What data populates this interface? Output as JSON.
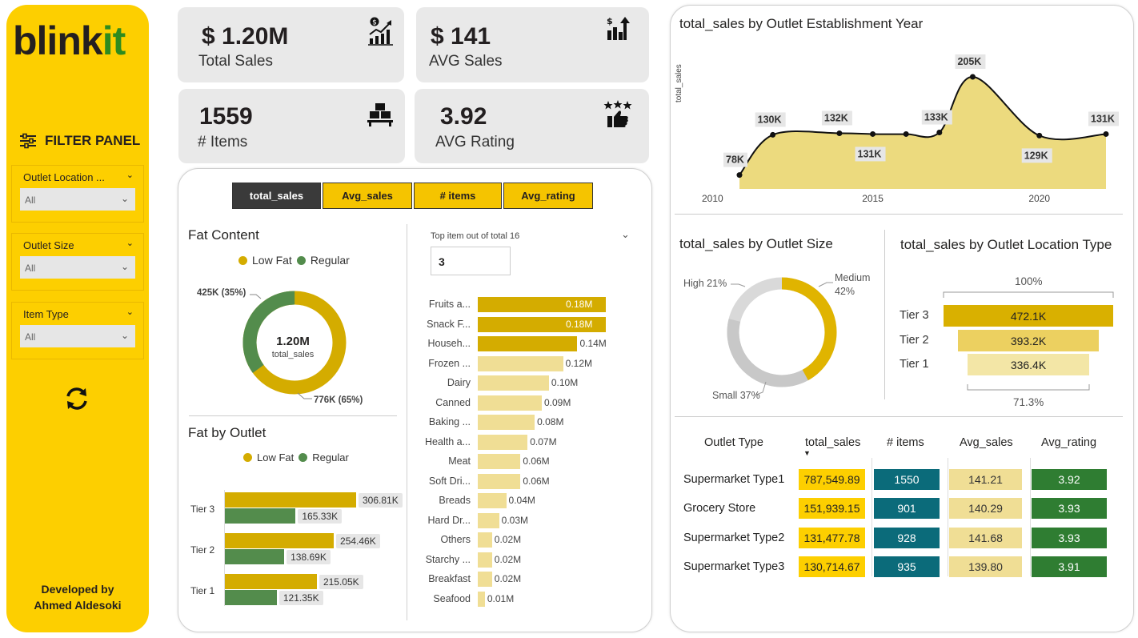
{
  "logo": {
    "part1": "blink",
    "part2": "it"
  },
  "filter_panel": {
    "title": "FILTER PANEL",
    "filters": [
      {
        "label": "Outlet Location ...",
        "value": "All"
      },
      {
        "label": "Outlet Size",
        "value": "All"
      },
      {
        "label": "Item Type",
        "value": "All"
      }
    ]
  },
  "developer": {
    "line1": "Developed by",
    "line2": "Ahmed Aldesoki"
  },
  "kpis": [
    {
      "value": "$ 1.20M",
      "label": "Total Sales",
      "icon": "sales-chart-icon"
    },
    {
      "value": "$ 141",
      "label": "AVG Sales",
      "icon": "bar-growth-icon"
    },
    {
      "value": "1559",
      "label": "# Items",
      "icon": "boxes-icon"
    },
    {
      "value": "3.92",
      "label": "AVG Rating",
      "icon": "rating-thumbs-icon"
    }
  ],
  "tabs": [
    {
      "label": "total_sales",
      "active": true
    },
    {
      "label": "Avg_sales",
      "active": false
    },
    {
      "label": "# items",
      "active": false
    },
    {
      "label": "Avg_rating",
      "active": false
    }
  ],
  "colors": {
    "accent": "#fdcf00",
    "lowfat": "#d4ac00",
    "regular": "#538c4c",
    "bar_top": "#d4ac00",
    "bar_rest": "#f0de95",
    "teal": "#0b6b7a",
    "green": "#2f7d32"
  },
  "fat_content": {
    "title": "Fat Content",
    "legend": [
      "Low Fat",
      "Regular"
    ],
    "center_value": "1.20M",
    "center_label": "total_sales",
    "label_regular": "425K (35%)",
    "label_lowfat": "776K (65%)"
  },
  "fat_by_outlet": {
    "title": "Fat by Outlet",
    "legend": [
      "Low Fat",
      "Regular"
    ],
    "rows": [
      {
        "tier": "Tier 3",
        "lowfat": "306.81K",
        "regular": "165.33K"
      },
      {
        "tier": "Tier 2",
        "lowfat": "254.46K",
        "regular": "138.69K"
      },
      {
        "tier": "Tier 1",
        "lowfat": "215.05K",
        "regular": "121.35K"
      }
    ]
  },
  "top_items": {
    "title": "Top item out of total 16",
    "input_value": "3"
  },
  "outlet_table": {
    "headers": [
      "Outlet Type",
      "total_sales",
      "# items",
      "Avg_sales",
      "Avg_rating"
    ],
    "rows": [
      [
        "Supermarket Type1",
        "787,549.89",
        "1550",
        "141.21",
        "3.92"
      ],
      [
        "Grocery Store",
        "151,939.15",
        "901",
        "140.29",
        "3.93"
      ],
      [
        "Supermarket Type2",
        "131,477.78",
        "928",
        "141.68",
        "3.93"
      ],
      [
        "Supermarket Type3",
        "130,714.67",
        "935",
        "139.80",
        "3.91"
      ]
    ]
  },
  "chart_data": [
    {
      "type": "bar",
      "orientation": "horizontal",
      "categories": [
        "Fruits a...",
        "Snack F...",
        "Househ...",
        "Frozen ...",
        "Dairy",
        "Canned",
        "Baking ...",
        "Health a...",
        "Meat",
        "Soft Dri...",
        "Breads",
        "Hard Dr...",
        "Others",
        "Starchy ...",
        "Breakfast",
        "Seafood"
      ],
      "values": [
        0.18,
        0.18,
        0.14,
        0.12,
        0.1,
        0.09,
        0.08,
        0.07,
        0.06,
        0.06,
        0.04,
        0.03,
        0.02,
        0.02,
        0.02,
        0.01
      ],
      "labels": [
        "0.18M",
        "0.18M",
        "0.14M",
        "0.12M",
        "0.10M",
        "0.09M",
        "0.08M",
        "0.07M",
        "0.06M",
        "0.06M",
        "0.04M",
        "0.03M",
        "0.02M",
        "0.02M",
        "0.02M",
        "0.01M"
      ],
      "highlight_top": 3
    },
    {
      "type": "area",
      "title": "total_sales by Outlet Establishment Year",
      "ylabel": "total_sales",
      "x": [
        2011,
        2012,
        2014,
        2015,
        2016,
        2017,
        2018,
        2020,
        2022
      ],
      "values": [
        78,
        130,
        132,
        131,
        131,
        133,
        205,
        129,
        131
      ],
      "labels": [
        "78K",
        "130K",
        "132K",
        "131K",
        "",
        "133K",
        "205K",
        "129K",
        "131K"
      ],
      "xticks": [
        "2010",
        "2015",
        "2020"
      ],
      "xlim": [
        2010,
        2022
      ]
    },
    {
      "type": "pie",
      "title": "total_sales by Outlet Size",
      "categories": [
        "Medium",
        "Small",
        "High"
      ],
      "values": [
        42,
        37,
        21
      ],
      "labels": [
        "Medium 42%",
        "Small 37%",
        "High 21%"
      ]
    },
    {
      "type": "bar",
      "subtype": "funnel",
      "title": "total_sales by Outlet Location Type",
      "categories": [
        "Tier 3",
        "Tier 2",
        "Tier 1"
      ],
      "values": [
        472.1,
        393.2,
        336.4
      ],
      "labels": [
        "472.1K",
        "393.2K",
        "336.4K"
      ],
      "top_pct": "100%",
      "bottom_pct": "71.3%"
    }
  ]
}
